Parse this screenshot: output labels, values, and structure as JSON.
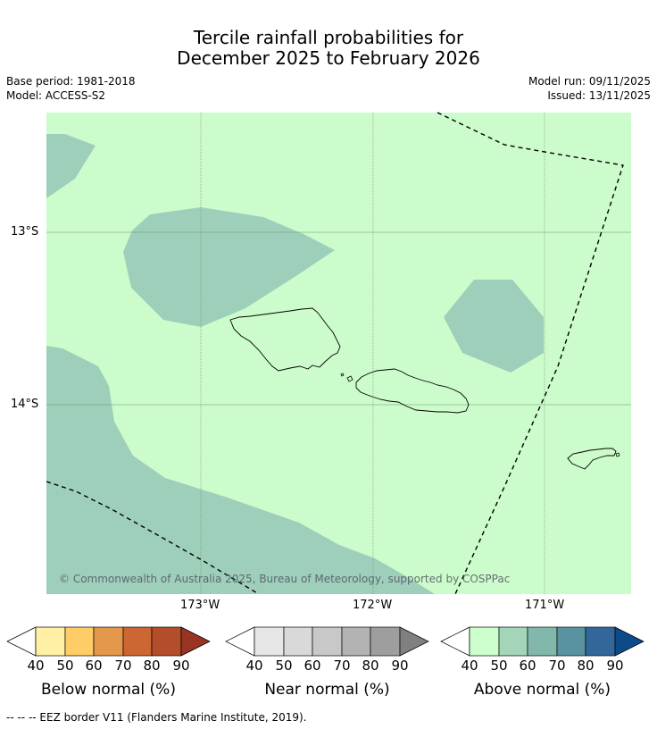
{
  "title_line1": "Tercile rainfall probabilities for",
  "title_line2": "December 2025 to February 2026",
  "meta_left": [
    "Base period: 1981-2018",
    "Model: ACCESS-S2"
  ],
  "meta_right": [
    "Model run: 09/11/2025",
    "Issued: 13/11/2025"
  ],
  "lat_ticks": [
    "13°S",
    "14°S"
  ],
  "lon_ticks": [
    "173°W",
    "172°W",
    "171°W"
  ],
  "copyright": "© Commonwealth of Australia 2025, Bureau of Meteorology, supported by COSPPac",
  "colorbars": [
    {
      "label": "Below normal (%)",
      "ticks": [
        "40",
        "50",
        "60",
        "70",
        "80",
        "90"
      ],
      "colors": [
        "#ffffff",
        "#fff0a6",
        "#ffcc66",
        "#e3974a",
        "#cc6633",
        "#b34d2a",
        "#993322"
      ]
    },
    {
      "label": "Near normal (%)",
      "ticks": [
        "40",
        "50",
        "60",
        "70",
        "80",
        "90"
      ],
      "colors": [
        "#ffffff",
        "#e6e6e6",
        "#d9d9d9",
        "#c8c8c8",
        "#b3b3b3",
        "#9e9e9e",
        "#808080"
      ]
    },
    {
      "label": "Above normal (%)",
      "ticks": [
        "40",
        "50",
        "60",
        "70",
        "80",
        "90"
      ],
      "colors": [
        "#ffffff",
        "#ccffcc",
        "#a3d6b8",
        "#82b8ab",
        "#5a93a0",
        "#33669a",
        "#0d4a8a"
      ]
    }
  ],
  "footer": "--  --  -- EEZ border V11 (Flanders Marine Institute, 2019).",
  "colors": {
    "above_40_50": "#ccfccb",
    "above_50_60": "#9ecfba",
    "grid": "#7a9a7a",
    "eez": "#000000"
  }
}
